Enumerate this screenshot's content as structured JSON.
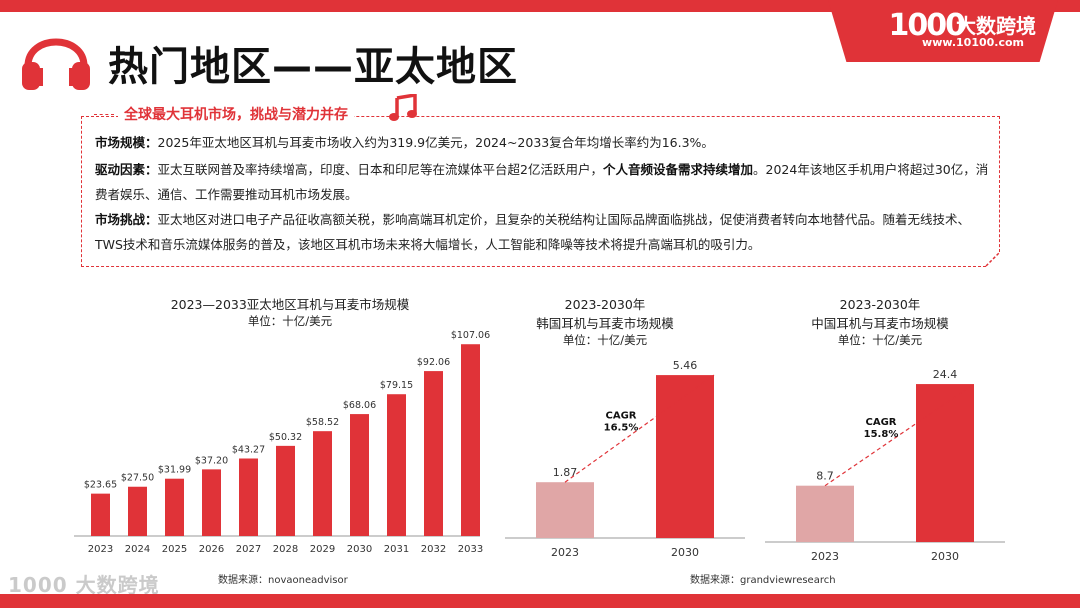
{
  "brand": {
    "mark": "1000",
    "name": "大数跨境",
    "url": "www.10100.com"
  },
  "title": "热门地区——亚太地区",
  "section_title": "全球最大耳机市场，挑战与潜力并存",
  "paragraphs": [
    {
      "label": "市场规模",
      "sep": "：",
      "text": "2025年亚太地区耳机与耳麦市场收入约为319.9亿美元，2024~2033复合年均增长率约为16.3%。"
    },
    {
      "label": "驱动因素",
      "sep": "：",
      "text_a": "亚太互联网普及率持续增高，印度、日本和印尼等在流媒体平台超2亿活跃用户，",
      "bold": "个人音频设备需求持续增加",
      "text_b": "。2024年该地区手机用户将超过30亿，消费者娱乐、通信、工作需要推动耳机市场发展。"
    },
    {
      "label": "市场挑战",
      "sep": "：",
      "text": "亚太地区对进口电子产品征收高额关税，影响高端耳机定价，且复杂的关税结构让国际品牌面临挑战，促使消费者转向本地替代品。随着无线技术、TWS技术和音乐流媒体服务的普及，该地区耳机市场未来将大幅增长，人工智能和降噪等技术将提升高端耳机的吸引力。"
    }
  ],
  "chart_data": [
    {
      "type": "bar",
      "title": "2023—2033亚太地区耳机与耳麦市场规模",
      "subtitle": "单位：十亿/美元",
      "categories": [
        "2023",
        "2024",
        "2025",
        "2026",
        "2027",
        "2028",
        "2029",
        "2030",
        "2031",
        "2032",
        "2033"
      ],
      "values": [
        23.65,
        27.5,
        31.99,
        37.2,
        43.27,
        50.32,
        58.52,
        68.06,
        79.15,
        92.06,
        107.06
      ],
      "labels": [
        "$23.65",
        "$27.50",
        "$31.99",
        "$37.20",
        "$43.27",
        "$50.32",
        "$58.52",
        "$68.06",
        "$79.15",
        "$92.06",
        "$107.06"
      ],
      "ylim": [
        0,
        115
      ],
      "source": "数据来源：novaoneadvisor",
      "color": "#e03338"
    },
    {
      "type": "bar",
      "title": "2023-2030年",
      "title2": "韩国耳机与耳麦市场规模",
      "subtitle": "单位：十亿/美元",
      "categories": [
        "2023",
        "2030"
      ],
      "values": [
        1.87,
        5.46
      ],
      "labels": [
        "1.87",
        "5.46"
      ],
      "cagr_label": "CAGR",
      "cagr_value": "16.5%",
      "ylim": [
        0,
        6.1
      ],
      "colors": [
        "#e0a6a6",
        "#e03338"
      ]
    },
    {
      "type": "bar",
      "title": "2023-2030年",
      "title2": "中国耳机与耳麦市场规模",
      "subtitle": "单位：十亿/美元",
      "categories": [
        "2023",
        "2030"
      ],
      "values": [
        8.7,
        24.4
      ],
      "labels": [
        "8.7",
        "24.4"
      ],
      "cagr_label": "CAGR",
      "cagr_value": "15.8%",
      "ylim": [
        0,
        27.5
      ],
      "colors": [
        "#e0a6a6",
        "#e03338"
      ]
    }
  ],
  "source_right": "数据来源：grandviewresearch",
  "watermark": "1000 大数跨境"
}
